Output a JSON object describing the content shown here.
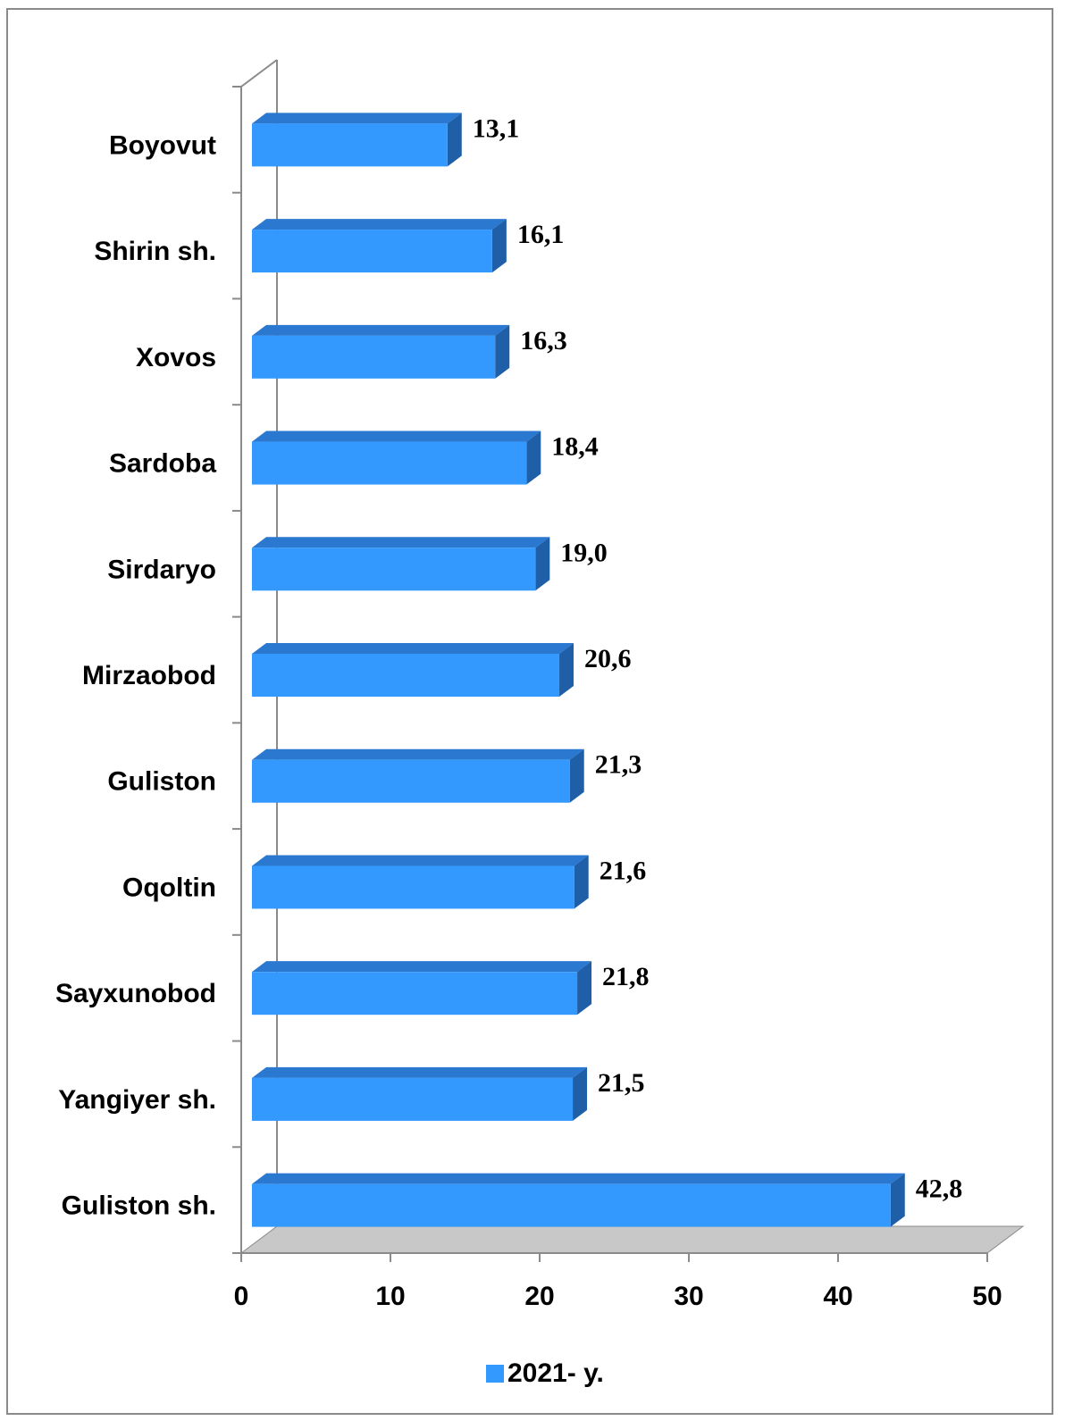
{
  "chart_data": {
    "type": "bar",
    "orientation": "horizontal",
    "style": "3d",
    "categories": [
      "Boyovut",
      "Shirin sh.",
      "Xovos",
      "Sardoba",
      "Sirdaryo",
      "Mirzaobod",
      "Guliston",
      "Oqoltin",
      "Sayxunobod",
      "Yangiyer sh.",
      "Guliston sh."
    ],
    "series": [
      {
        "name": "2021- y.",
        "values": [
          13.1,
          16.1,
          16.3,
          18.4,
          19.0,
          20.6,
          21.3,
          21.6,
          21.8,
          21.5,
          42.8
        ],
        "value_labels": [
          "13,1",
          "16,1",
          "16,3",
          "18,4",
          "19,0",
          "20,6",
          "21,3",
          "21,6",
          "21,8",
          "21,5",
          "42,8"
        ],
        "color": "#3399ff",
        "side_color": "#1f5fa8",
        "top_color": "#2b78d0"
      }
    ],
    "xlim": [
      0,
      50
    ],
    "xticks": [
      "0",
      "10",
      "20",
      "30",
      "40",
      "50"
    ],
    "xlabel": "",
    "ylabel": "",
    "grid": false,
    "legend": {
      "position": "bottom",
      "entries": [
        "2021- y."
      ]
    }
  },
  "colors": {
    "floor": "#c8c8c8",
    "axis": "#8a8a8a",
    "frame": "#8a8a8a"
  }
}
